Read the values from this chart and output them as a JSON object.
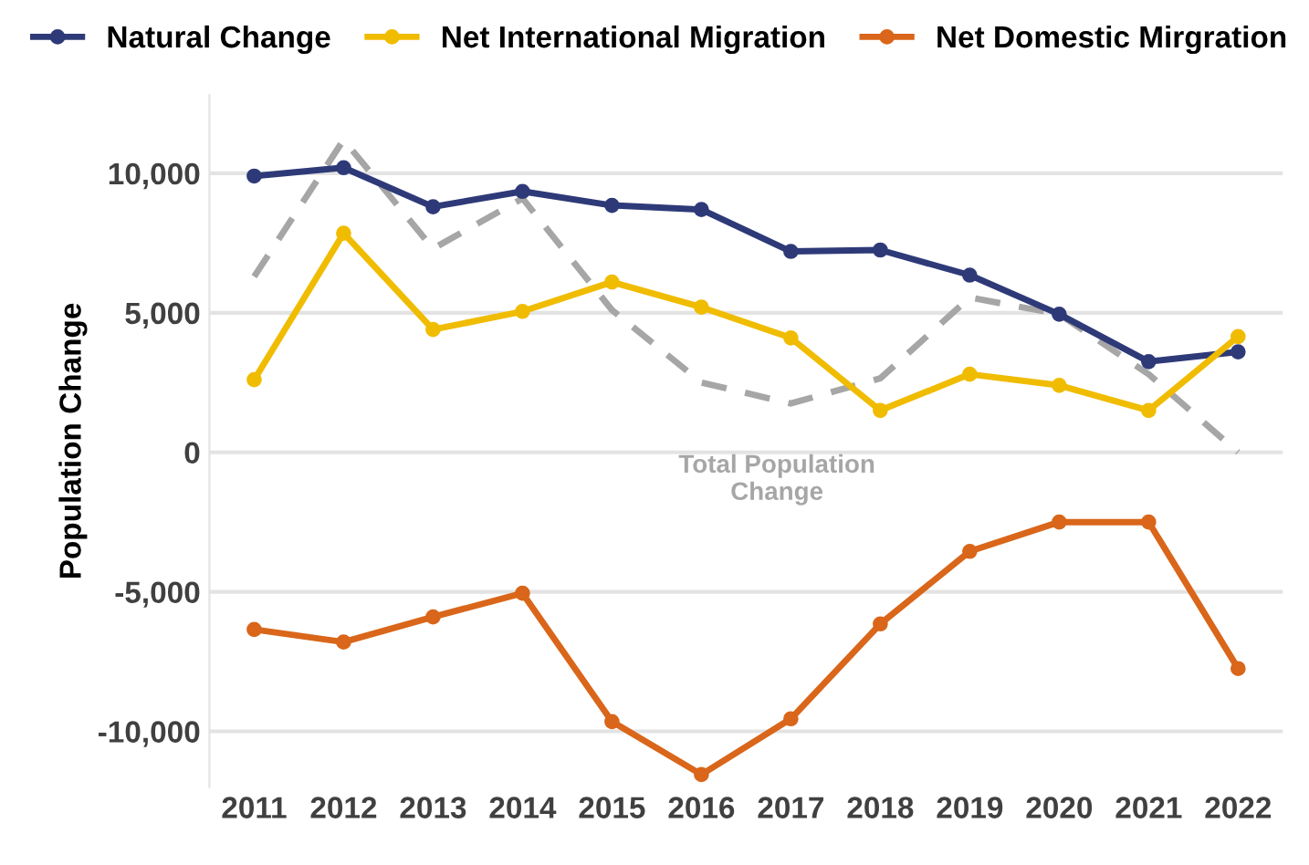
{
  "chart_data": {
    "type": "line",
    "ylabel": "Population Change",
    "categories": [
      "2011",
      "2012",
      "2013",
      "2014",
      "2015",
      "2016",
      "2017",
      "2018",
      "2019",
      "2020",
      "2021",
      "2022"
    ],
    "series": [
      {
        "name": "Natural Change",
        "color": "#2e3a78",
        "marker": "circle",
        "line_style": "solid",
        "values": [
          9900,
          10200,
          8800,
          9350,
          8850,
          8700,
          7200,
          7250,
          6350,
          4950,
          3250,
          3600
        ]
      },
      {
        "name": "Net International Migration",
        "color": "#f0bc00",
        "marker": "circle",
        "line_style": "solid",
        "values": [
          2600,
          7850,
          4400,
          5050,
          6100,
          5200,
          4100,
          1500,
          2800,
          2400,
          1500,
          4150
        ]
      },
      {
        "name": "Net Domestic Mirgration",
        "color": "#d9661a",
        "marker": "circle",
        "line_style": "solid",
        "values": [
          -6350,
          -6800,
          -5900,
          -5050,
          -9650,
          -11550,
          -9550,
          -6150,
          -3550,
          -2500,
          -2500,
          -7750
        ]
      },
      {
        "color": "#a6a6a6",
        "marker": "none",
        "line_style": "dashed",
        "values": [
          6300,
          11200,
          7300,
          9100,
          5100,
          2500,
          1750,
          2650,
          5550,
          4950,
          2800,
          0
        ]
      }
    ],
    "annotations": [
      {
        "text": "Total Population Change",
        "x": "2017",
        "y": 1750
      }
    ],
    "ylim": [
      -12000,
      12800
    ],
    "yticks": [
      {
        "value": -10000,
        "label": "-10,000"
      },
      {
        "value": -5000,
        "label": "-5,000"
      },
      {
        "value": 0,
        "label": "0"
      },
      {
        "value": 5000,
        "label": "5,000"
      },
      {
        "value": 10000,
        "label": "10,000"
      }
    ],
    "grid": "y",
    "legend": "top"
  }
}
